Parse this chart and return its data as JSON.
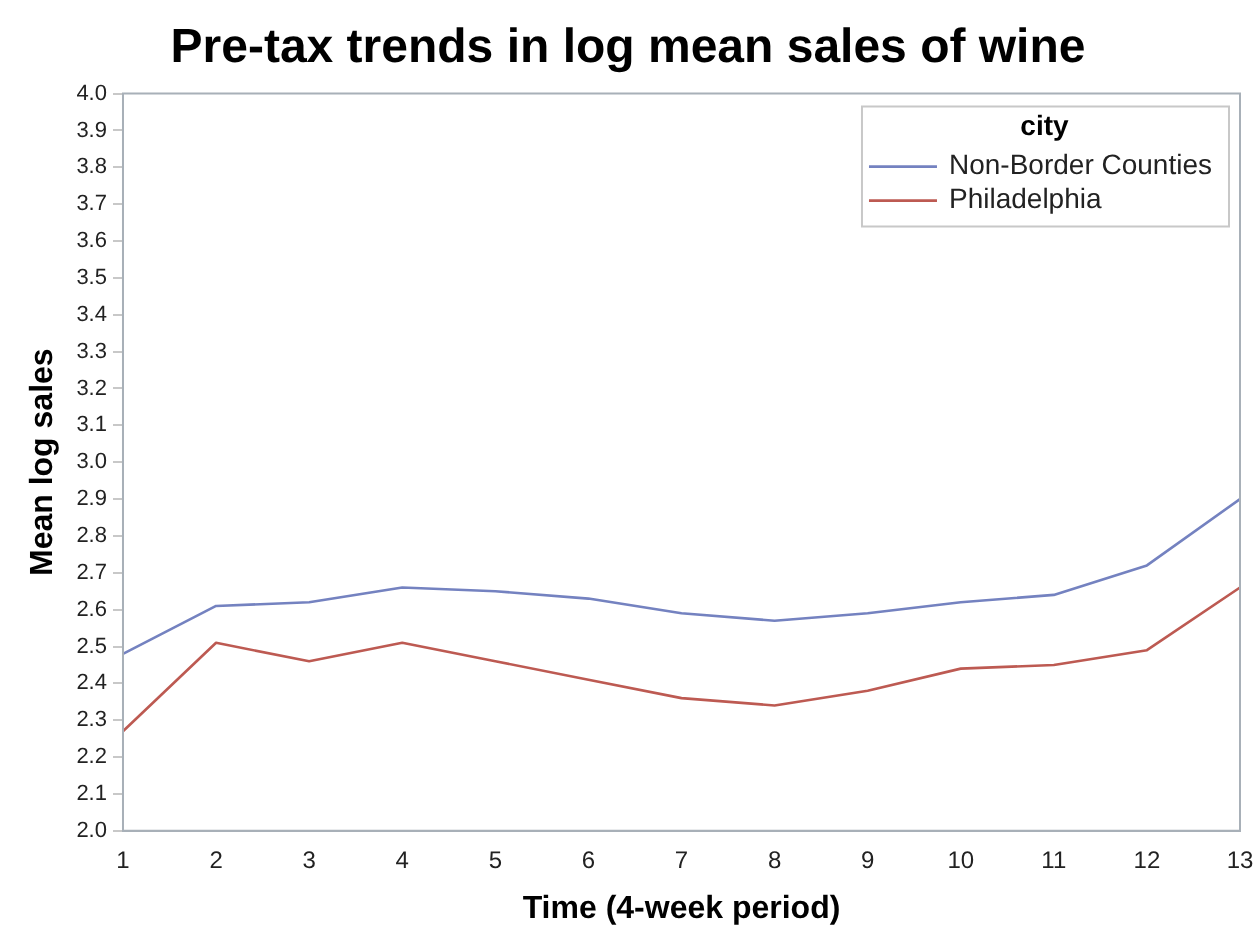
{
  "chart_data": {
    "type": "line",
    "title": "Pre-tax trends in log mean sales of wine",
    "xlabel": "Time (4-week period)",
    "ylabel": "Mean log sales",
    "legend_title": "city",
    "legend": "top right",
    "grid": false,
    "marker": "none",
    "line_style": "solid",
    "x": [
      1,
      2,
      3,
      4,
      5,
      6,
      7,
      8,
      9,
      10,
      11,
      12,
      13
    ],
    "xlim": [
      1,
      13
    ],
    "xticks": [
      1,
      2,
      3,
      4,
      5,
      6,
      7,
      8,
      9,
      10,
      11,
      12,
      13
    ],
    "ylim": [
      2,
      4
    ],
    "yticks": [
      {
        "value": 2,
        "label": "2.0"
      },
      {
        "value": 2.1,
        "label": "2.1"
      },
      {
        "value": 2.2,
        "label": "2.2"
      },
      {
        "value": 2.3,
        "label": "2.3"
      },
      {
        "value": 2.4,
        "label": "2.4"
      },
      {
        "value": 2.5,
        "label": "2.5"
      },
      {
        "value": 2.6,
        "label": "2.6"
      },
      {
        "value": 2.7,
        "label": "2.7"
      },
      {
        "value": 2.8,
        "label": "2.8"
      },
      {
        "value": 2.9,
        "label": "2.9"
      },
      {
        "value": 3,
        "label": "3.0"
      },
      {
        "value": 3.1,
        "label": "3.1"
      },
      {
        "value": 3.2,
        "label": "3.2"
      },
      {
        "value": 3.3,
        "label": "3.3"
      },
      {
        "value": 3.4,
        "label": "3.4"
      },
      {
        "value": 3.5,
        "label": "3.5"
      },
      {
        "value": 3.6,
        "label": "3.6"
      },
      {
        "value": 3.7,
        "label": "3.7"
      },
      {
        "value": 3.8,
        "label": "3.8"
      },
      {
        "value": 3.9,
        "label": "3.9"
      },
      {
        "value": 4,
        "label": "4.0"
      }
    ],
    "series": [
      {
        "name": "Non-Border Counties",
        "color": "#7482c0",
        "values": [
          2.48,
          2.61,
          2.62,
          2.66,
          2.65,
          2.63,
          2.59,
          2.57,
          2.59,
          2.62,
          2.64,
          2.72,
          2.9
        ]
      },
      {
        "name": "Philadelphia",
        "color": "#bd5a52",
        "values": [
          2.27,
          2.51,
          2.46,
          2.51,
          2.46,
          2.41,
          2.36,
          2.34,
          2.38,
          2.44,
          2.45,
          2.49,
          2.66
        ]
      }
    ]
  }
}
